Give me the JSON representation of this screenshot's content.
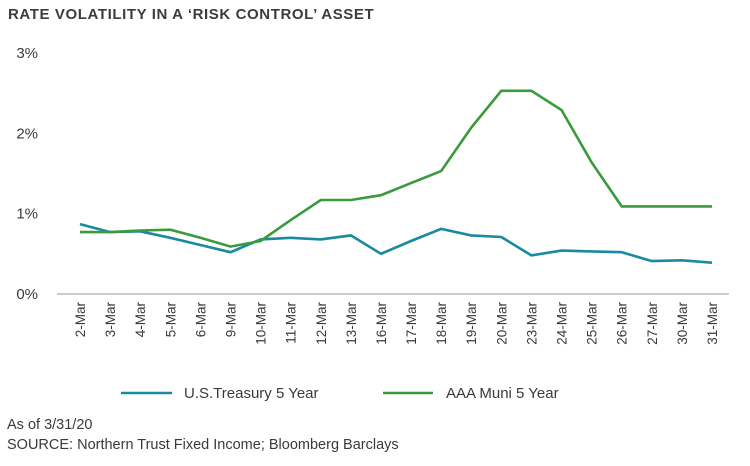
{
  "title": "RATE VOLATILITY IN A ‘RISK CONTROL’ ASSET",
  "footer": {
    "as_of": "As of 3/31/20",
    "source": "SOURCE: Northern Trust Fixed Income; Bloomberg Barclays"
  },
  "colors": {
    "treasury": "#1a8aa0",
    "muni": "#3a9a3c",
    "axis": "#9a9a9a"
  },
  "chart_data": {
    "type": "line",
    "title": "RATE VOLATILITY IN A ‘RISK CONTROL’ ASSET",
    "xlabel": "",
    "ylabel": "",
    "categories": [
      "2-Mar",
      "3-Mar",
      "4-Mar",
      "5-Mar",
      "6-Mar",
      "9-Mar",
      "10-Mar",
      "11-Mar",
      "12-Mar",
      "13-Mar",
      "16-Mar",
      "17-Mar",
      "18-Mar",
      "19-Mar",
      "20-Mar",
      "23-Mar",
      "24-Mar",
      "25-Mar",
      "26-Mar",
      "27-Mar",
      "30-Mar",
      "31-Mar"
    ],
    "y_tick_labels": [
      "0%",
      "1%",
      "2%",
      "3%"
    ],
    "y_ticks": [
      0,
      1,
      2,
      3
    ],
    "ylim": [
      0,
      3
    ],
    "grid": false,
    "legend_position": "bottom",
    "series": [
      {
        "name": "U.S.Treasury 5 Year",
        "color": "#1a8aa0",
        "values": [
          0.87,
          0.77,
          0.78,
          0.7,
          0.61,
          0.52,
          0.68,
          0.7,
          0.68,
          0.73,
          0.5,
          0.66,
          0.81,
          0.73,
          0.71,
          0.48,
          0.54,
          0.53,
          0.52,
          0.41,
          0.42,
          0.39
        ]
      },
      {
        "name": "AAA Muni 5 Year",
        "color": "#3a9a3c",
        "values": [
          0.77,
          0.77,
          0.79,
          0.8,
          0.7,
          0.59,
          0.66,
          0.92,
          1.17,
          1.17,
          1.23,
          1.38,
          1.53,
          2.07,
          2.53,
          2.53,
          2.29,
          1.64,
          1.09,
          1.09,
          1.09,
          1.09
        ]
      }
    ]
  }
}
